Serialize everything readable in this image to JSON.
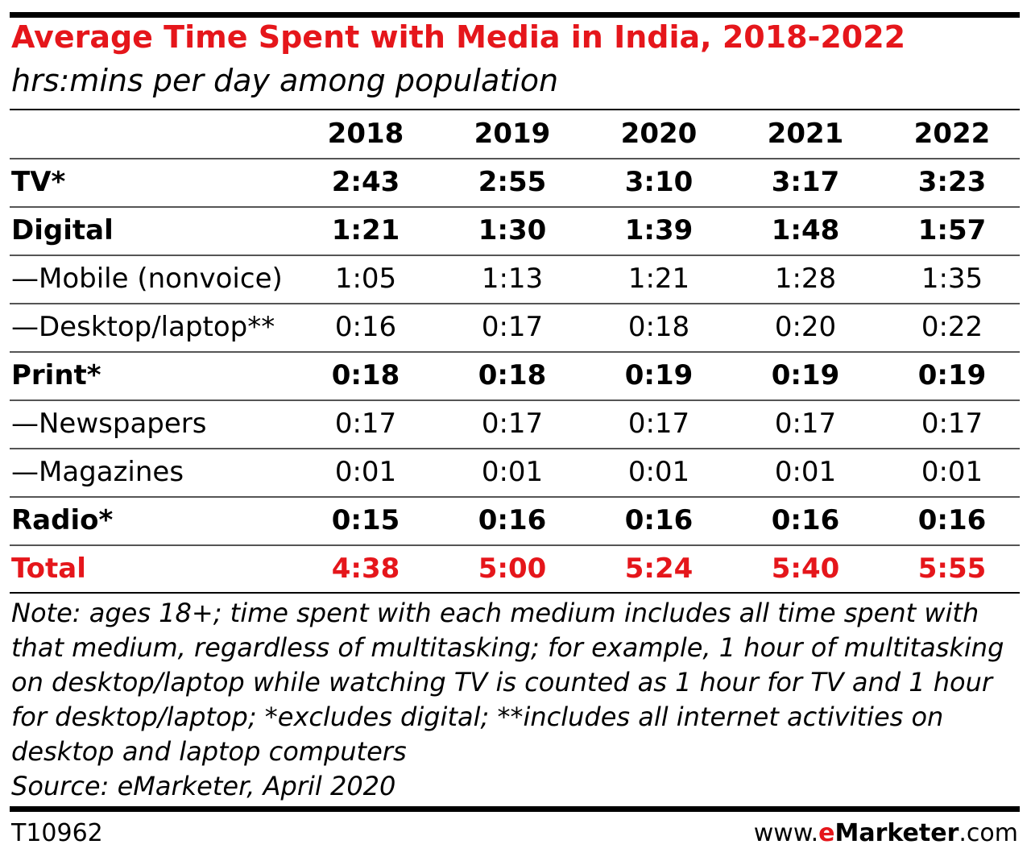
{
  "title": "Average Time Spent with Media in India, 2018-2022",
  "subtitle": "hrs:mins per day among population",
  "chart_data": {
    "type": "table",
    "columns": [
      "2018",
      "2019",
      "2020",
      "2021",
      "2022"
    ],
    "rows": [
      {
        "label": "TV*",
        "style": "bold",
        "values": [
          "2:43",
          "2:55",
          "3:10",
          "3:17",
          "3:23"
        ]
      },
      {
        "label": "Digital",
        "style": "bold",
        "values": [
          "1:21",
          "1:30",
          "1:39",
          "1:48",
          "1:57"
        ]
      },
      {
        "label": "—Mobile (nonvoice)",
        "style": "normal",
        "values": [
          "1:05",
          "1:13",
          "1:21",
          "1:28",
          "1:35"
        ]
      },
      {
        "label": "—Desktop/laptop**",
        "style": "normal",
        "values": [
          "0:16",
          "0:17",
          "0:18",
          "0:20",
          "0:22"
        ]
      },
      {
        "label": "Print*",
        "style": "bold",
        "values": [
          "0:18",
          "0:18",
          "0:19",
          "0:19",
          "0:19"
        ]
      },
      {
        "label": "—Newspapers",
        "style": "normal",
        "values": [
          "0:17",
          "0:17",
          "0:17",
          "0:17",
          "0:17"
        ]
      },
      {
        "label": "—Magazines",
        "style": "normal",
        "values": [
          "0:01",
          "0:01",
          "0:01",
          "0:01",
          "0:01"
        ]
      },
      {
        "label": "Radio*",
        "style": "bold",
        "values": [
          "0:15",
          "0:16",
          "0:16",
          "0:16",
          "0:16"
        ]
      },
      {
        "label": "Total",
        "style": "total",
        "values": [
          "4:38",
          "5:00",
          "5:24",
          "5:40",
          "5:55"
        ]
      }
    ]
  },
  "note_lines": [
    "Note: ages 18+; time spent with each medium includes all time spent with",
    "that medium, regardless of multitasking; for example, 1 hour of multitasking",
    "on desktop/laptop while watching TV is counted as 1 hour for TV and 1 hour",
    "for desktop/laptop; *excludes digital; **includes all internet activities on",
    "desktop and laptop computers",
    "Source: eMarketer, April 2020"
  ],
  "footer": {
    "chart_id": "T10962",
    "brand_prefix": "www.",
    "brand_e": "e",
    "brand_name": "Marketer",
    "brand_suffix": ".com"
  },
  "colors": {
    "accent": "#e5161b",
    "text": "#000000"
  }
}
